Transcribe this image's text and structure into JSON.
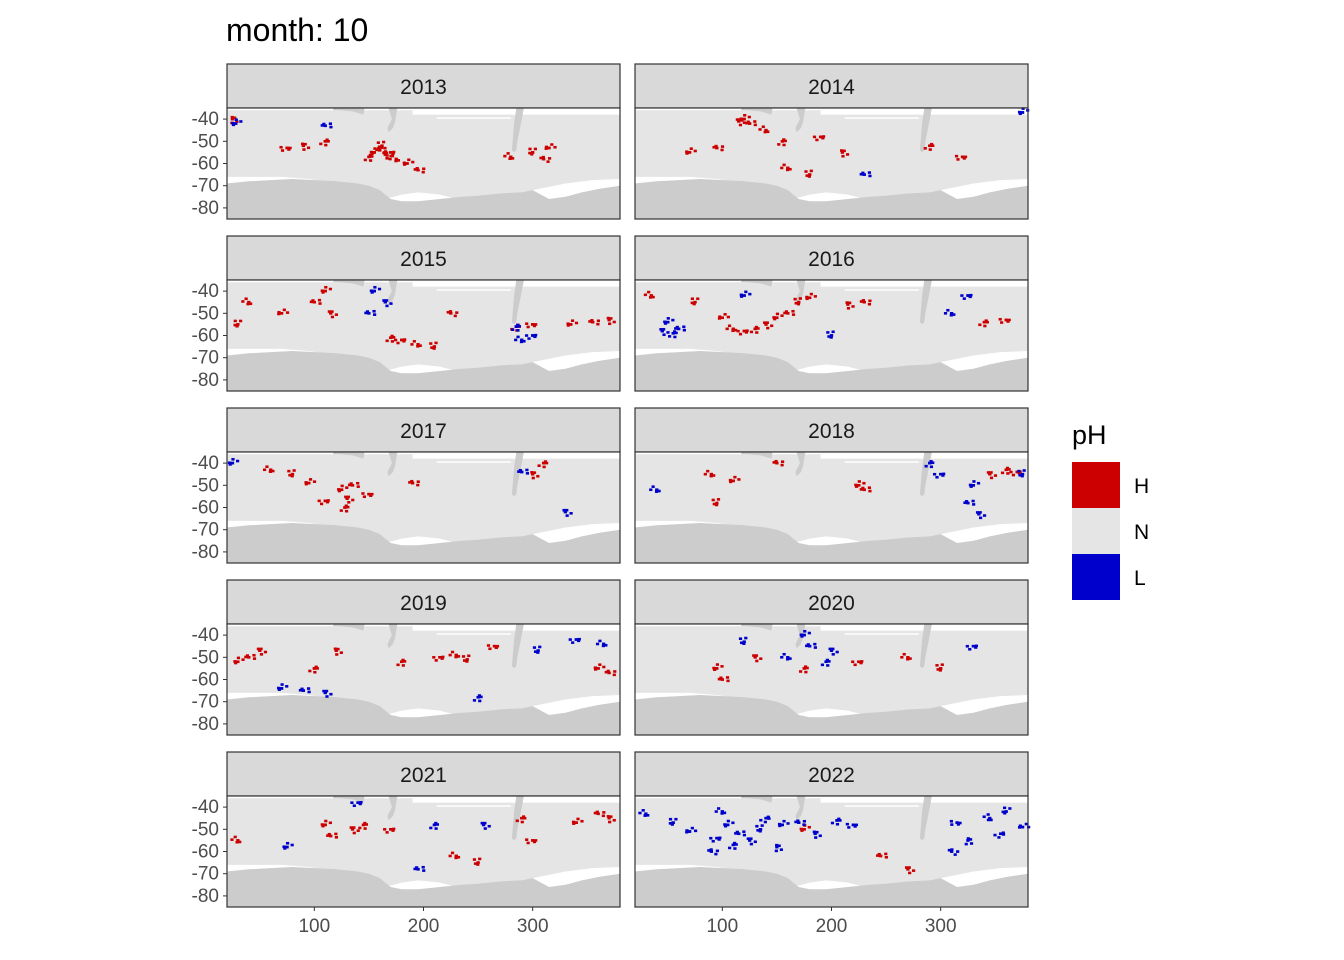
{
  "title": "month: 10",
  "legend": {
    "title": "pH",
    "items": [
      {
        "key": "H",
        "label": "H",
        "color": "#CC0000"
      },
      {
        "key": "N",
        "label": "N",
        "color": "#E5E5E5"
      },
      {
        "key": "L",
        "label": "L",
        "color": "#0000CC"
      }
    ]
  },
  "colors": {
    "land": "#CCCCCC",
    "no_data": "#FFFFFF",
    "strip_background": "#D9D9D9",
    "panel_border": "#333333",
    "tick_text": "#4D4D4D"
  },
  "chart_data": {
    "type": "heatmap",
    "facet_by": "year",
    "layout": {
      "columns": 2,
      "rows": 5
    },
    "xlim": [
      20,
      380
    ],
    "ylim": [
      -85,
      -35
    ],
    "x_ticks": [
      100,
      200,
      300
    ],
    "y_ticks": [
      -40,
      -50,
      -60,
      -70,
      -80
    ],
    "x_tick_labels": [
      "100",
      "200",
      "300"
    ],
    "y_tick_labels": [
      "-40",
      "-50",
      "-60",
      "-70",
      "-80"
    ],
    "categories": [
      "H",
      "N",
      "L"
    ],
    "panels": [
      {
        "year": "2013",
        "H": [
          [
            155,
            -55
          ],
          [
            160,
            -54
          ],
          [
            165,
            -56
          ],
          [
            150,
            -57
          ],
          [
            170,
            -55
          ],
          [
            175,
            -58
          ],
          [
            162,
            -52
          ],
          [
            185,
            -60
          ],
          [
            195,
            -63
          ],
          [
            90,
            -52
          ],
          [
            110,
            -50
          ],
          [
            75,
            -53
          ],
          [
            280,
            -57
          ],
          [
            300,
            -55
          ],
          [
            315,
            -53
          ],
          [
            310,
            -58
          ],
          [
            25,
            -40
          ]
        ],
        "L": [
          [
            28,
            -42
          ],
          [
            110,
            -43
          ]
        ]
      },
      {
        "year": "2014",
        "H": [
          [
            120,
            -40
          ],
          [
            125,
            -42
          ],
          [
            115,
            -41
          ],
          [
            155,
            -50
          ],
          [
            190,
            -48
          ],
          [
            160,
            -62
          ],
          [
            180,
            -65
          ],
          [
            70,
            -55
          ],
          [
            95,
            -53
          ],
          [
            210,
            -55
          ],
          [
            290,
            -52
          ],
          [
            320,
            -57
          ],
          [
            140,
            -45
          ]
        ],
        "L": [
          [
            375,
            -37
          ],
          [
            230,
            -65
          ]
        ]
      },
      {
        "year": "2015",
        "H": [
          [
            110,
            -40
          ],
          [
            100,
            -45
          ],
          [
            115,
            -50
          ],
          [
            170,
            -61
          ],
          [
            180,
            -62
          ],
          [
            195,
            -64
          ],
          [
            210,
            -65
          ],
          [
            335,
            -55
          ],
          [
            355,
            -54
          ],
          [
            370,
            -53
          ],
          [
            285,
            -56
          ],
          [
            300,
            -55
          ],
          [
            40,
            -45
          ],
          [
            30,
            -55
          ],
          [
            70,
            -50
          ],
          [
            225,
            -50
          ]
        ],
        "L": [
          [
            155,
            -40
          ],
          [
            150,
            -50
          ],
          [
            165,
            -45
          ],
          [
            285,
            -56
          ],
          [
            300,
            -60
          ],
          [
            290,
            -62
          ]
        ]
      },
      {
        "year": "2016",
        "H": [
          [
            150,
            -52
          ],
          [
            160,
            -50
          ],
          [
            140,
            -55
          ],
          [
            130,
            -57
          ],
          [
            120,
            -58
          ],
          [
            110,
            -57
          ],
          [
            170,
            -45
          ],
          [
            180,
            -43
          ],
          [
            230,
            -45
          ],
          [
            215,
            -46
          ],
          [
            340,
            -54
          ],
          [
            360,
            -53
          ],
          [
            35,
            -42
          ],
          [
            75,
            -45
          ],
          [
            100,
            -52
          ]
        ],
        "L": [
          [
            50,
            -54
          ],
          [
            60,
            -57
          ],
          [
            45,
            -58
          ],
          [
            55,
            -59
          ],
          [
            325,
            -42
          ],
          [
            310,
            -50
          ],
          [
            200,
            -60
          ],
          [
            120,
            -42
          ]
        ]
      },
      {
        "year": "2017",
        "H": [
          [
            125,
            -52
          ],
          [
            135,
            -50
          ],
          [
            130,
            -56
          ],
          [
            128,
            -60
          ],
          [
            110,
            -57
          ],
          [
            60,
            -43
          ],
          [
            80,
            -45
          ],
          [
            95,
            -49
          ],
          [
            190,
            -49
          ],
          [
            300,
            -45
          ],
          [
            310,
            -40
          ],
          [
            150,
            -54
          ]
        ],
        "L": [
          [
            25,
            -40
          ],
          [
            290,
            -44
          ],
          [
            330,
            -62
          ]
        ]
      },
      {
        "year": "2018",
        "H": [
          [
            225,
            -50
          ],
          [
            230,
            -52
          ],
          [
            345,
            -45
          ],
          [
            360,
            -43
          ],
          [
            370,
            -44
          ],
          [
            90,
            -45
          ],
          [
            95,
            -58
          ],
          [
            110,
            -48
          ],
          [
            150,
            -40
          ]
        ],
        "L": [
          [
            330,
            -50
          ],
          [
            325,
            -58
          ],
          [
            335,
            -63
          ],
          [
            290,
            -40
          ],
          [
            300,
            -45
          ],
          [
            40,
            -52
          ],
          [
            375,
            -45
          ]
        ]
      },
      {
        "year": "2019",
        "H": [
          [
            30,
            -52
          ],
          [
            40,
            -50
          ],
          [
            50,
            -47
          ],
          [
            180,
            -52
          ],
          [
            215,
            -50
          ],
          [
            230,
            -49
          ],
          [
            240,
            -51
          ],
          [
            360,
            -55
          ],
          [
            370,
            -57
          ],
          [
            120,
            -47
          ],
          [
            100,
            -55
          ],
          [
            265,
            -45
          ]
        ],
        "L": [
          [
            70,
            -64
          ],
          [
            90,
            -65
          ],
          [
            110,
            -66
          ],
          [
            250,
            -68
          ],
          [
            340,
            -42
          ],
          [
            365,
            -44
          ],
          [
            305,
            -47
          ]
        ]
      },
      {
        "year": "2020",
        "H": [
          [
            95,
            -55
          ],
          [
            100,
            -60
          ],
          [
            130,
            -50
          ],
          [
            175,
            -55
          ],
          [
            225,
            -52
          ],
          [
            270,
            -50
          ],
          [
            300,
            -55
          ]
        ],
        "L": [
          [
            175,
            -40
          ],
          [
            180,
            -45
          ],
          [
            200,
            -47
          ],
          [
            195,
            -52
          ],
          [
            330,
            -45
          ],
          [
            160,
            -50
          ],
          [
            120,
            -43
          ]
        ]
      },
      {
        "year": "2021",
        "H": [
          [
            110,
            -48
          ],
          [
            115,
            -53
          ],
          [
            135,
            -50
          ],
          [
            145,
            -48
          ],
          [
            170,
            -50
          ],
          [
            230,
            -62
          ],
          [
            250,
            -65
          ],
          [
            340,
            -47
          ],
          [
            360,
            -43
          ],
          [
            370,
            -45
          ],
          [
            290,
            -45
          ],
          [
            300,
            -55
          ],
          [
            30,
            -55
          ]
        ],
        "L": [
          [
            75,
            -58
          ],
          [
            195,
            -68
          ],
          [
            255,
            -48
          ],
          [
            210,
            -48
          ],
          [
            140,
            -38
          ]
        ]
      },
      {
        "year": "2022",
        "H": [
          [
            175,
            -50
          ],
          [
            245,
            -62
          ],
          [
            270,
            -68
          ]
        ],
        "L": [
          [
            105,
            -48
          ],
          [
            115,
            -52
          ],
          [
            125,
            -55
          ],
          [
            110,
            -57
          ],
          [
            95,
            -54
          ],
          [
            100,
            -42
          ],
          [
            135,
            -50
          ],
          [
            155,
            -48
          ],
          [
            170,
            -47
          ],
          [
            185,
            -52
          ],
          [
            205,
            -46
          ],
          [
            220,
            -48
          ],
          [
            30,
            -43
          ],
          [
            55,
            -47
          ],
          [
            70,
            -51
          ],
          [
            90,
            -60
          ],
          [
            150,
            -58
          ],
          [
            140,
            -45
          ],
          [
            315,
            -47
          ],
          [
            345,
            -45
          ],
          [
            360,
            -42
          ],
          [
            375,
            -49
          ],
          [
            310,
            -60
          ],
          [
            325,
            -55
          ],
          [
            355,
            -52
          ]
        ]
      }
    ]
  }
}
